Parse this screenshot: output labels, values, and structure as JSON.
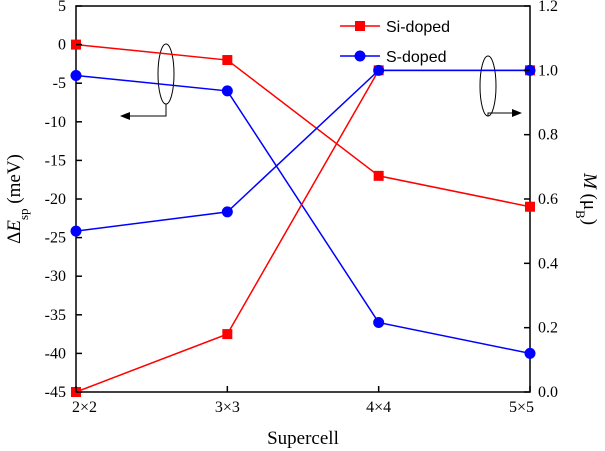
{
  "chart_data": {
    "type": "line",
    "categories": [
      "2×2",
      "3×3",
      "4×4",
      "5×5"
    ],
    "xlabel": "Supercell",
    "ylabel_left": {
      "base": "ΔE",
      "sub": "sp",
      "unit": " (meV)"
    },
    "ylabel_right": {
      "italic": "M",
      "unit_open": " (μ",
      "sub": "B",
      "unit_close": ")"
    },
    "ylim_left": [
      -45,
      5
    ],
    "yticks_left": [
      5,
      0,
      -5,
      -10,
      -15,
      -20,
      -25,
      -30,
      -35,
      -40,
      -45
    ],
    "ylim_right": [
      0.0,
      1.2
    ],
    "yticks_right": [
      "1.2",
      "1.0",
      "0.8",
      "0.6",
      "0.4",
      "0.2",
      "0.0"
    ],
    "grid": false,
    "legend_position": "top-right",
    "series": [
      {
        "name": "Si-doped",
        "color": "#ff0000",
        "marker": "square",
        "axis": "left",
        "values": [
          0,
          -2,
          -17,
          -21
        ]
      },
      {
        "name": "S-doped",
        "color": "#0000ff",
        "marker": "circle",
        "axis": "left",
        "values": [
          -4,
          -6,
          -36,
          -40
        ]
      },
      {
        "name": "",
        "color": "#ff0000",
        "marker": "square",
        "axis": "right",
        "values": [
          0.0,
          0.18,
          1.0,
          1.0
        ]
      },
      {
        "name": "",
        "color": "#0000ff",
        "marker": "circle",
        "axis": "right",
        "values": [
          0.5,
          0.56,
          1.0,
          1.0
        ]
      }
    ],
    "legend": [
      {
        "label": "Si-doped",
        "color": "#ff0000",
        "marker": "square"
      },
      {
        "label": "S-doped",
        "color": "#0000ff",
        "marker": "circle"
      }
    ]
  }
}
